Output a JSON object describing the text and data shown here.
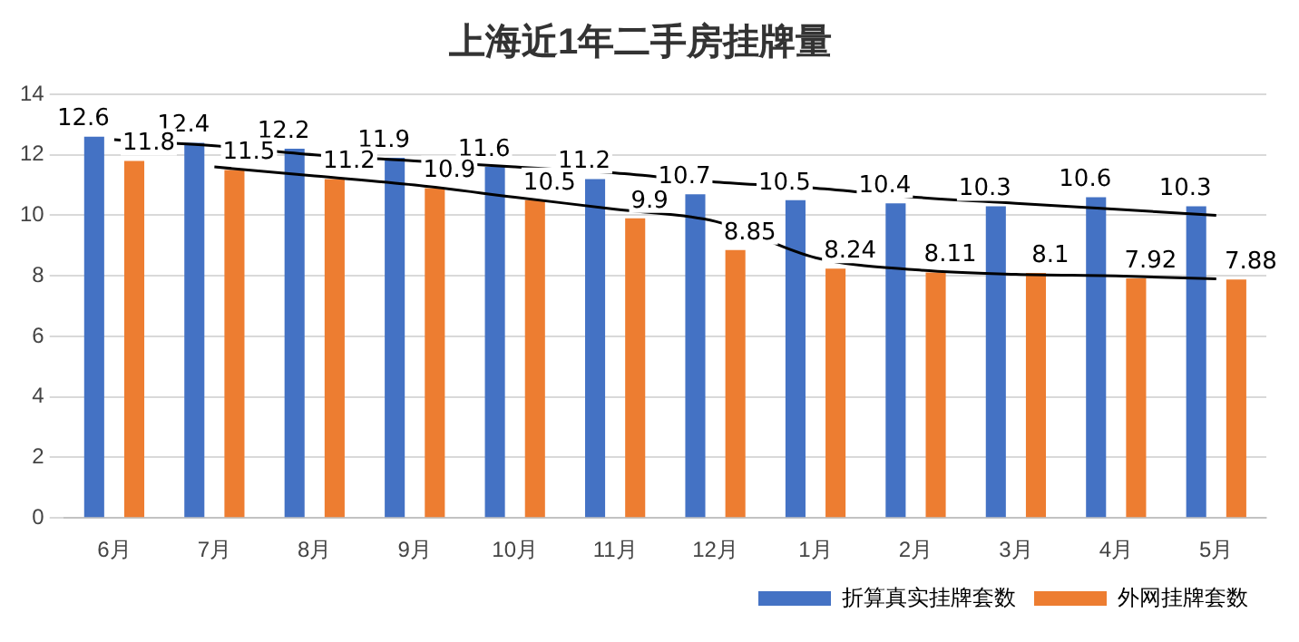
{
  "chart_data": {
    "type": "bar",
    "title": "上海近1年二手房挂牌量",
    "categories": [
      "6月",
      "7月",
      "8月",
      "9月",
      "10月",
      "11月",
      "12月",
      "1月",
      "2月",
      "3月",
      "4月",
      "5月"
    ],
    "series": [
      {
        "name": "折算真实挂牌套数",
        "color": "#4472c4",
        "values": [
          12.6,
          12.4,
          12.2,
          11.9,
          11.6,
          11.2,
          10.7,
          10.5,
          10.4,
          10.3,
          10.6,
          10.3
        ],
        "value_labels": [
          "12.6",
          "12.4",
          "12.2",
          "11.9",
          "11.6",
          "11.2",
          "10.7",
          "10.5",
          "10.4",
          "10.3",
          "10.6",
          "10.3"
        ]
      },
      {
        "name": "外网挂牌套数",
        "color": "#ed7d31",
        "values": [
          11.8,
          11.5,
          11.2,
          10.9,
          10.5,
          9.9,
          8.85,
          8.24,
          8.11,
          8.1,
          7.92,
          7.88
        ],
        "value_labels": [
          "11.8",
          "11.5",
          "11.2",
          "10.9",
          "10.5",
          "9.9",
          "8.85",
          "8.24",
          "8.11",
          "8.1",
          "7.92",
          "7.88"
        ]
      },
      {
        "type": "line",
        "color": "#000000",
        "values": [
          12.5,
          12.3,
          12.0,
          11.8,
          11.6,
          11.4,
          11.1,
          10.9,
          10.6,
          10.4,
          10.2,
          10.0
        ]
      },
      {
        "type": "line",
        "color": "#000000",
        "values": [
          null,
          11.6,
          11.3,
          11.0,
          10.6,
          10.2,
          9.8,
          8.6,
          8.2,
          8.05,
          8.0,
          7.9
        ]
      }
    ],
    "ylim": [
      0,
      14
    ],
    "yticks": [
      0,
      2,
      4,
      6,
      8,
      10,
      12,
      14
    ],
    "grid": "y",
    "legend": "bottom"
  }
}
